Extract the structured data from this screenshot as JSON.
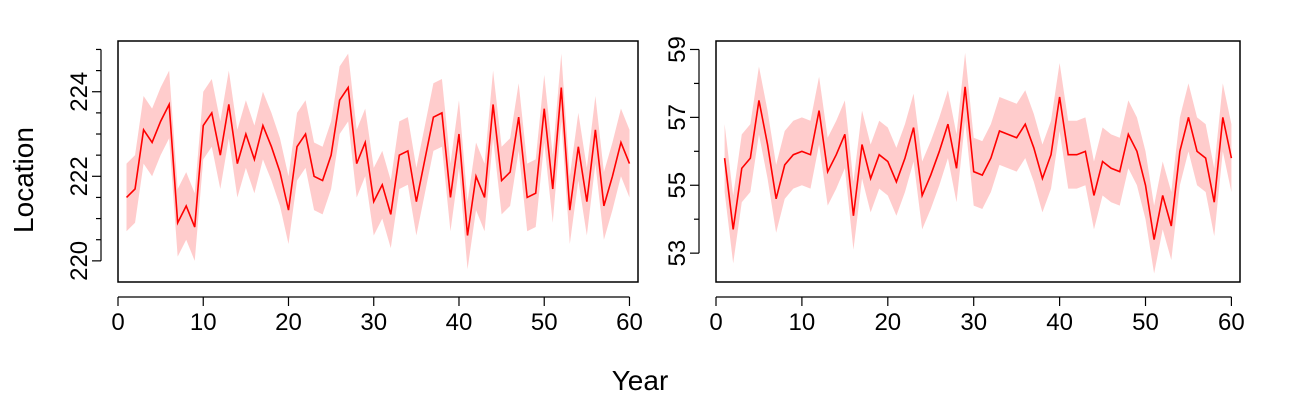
{
  "figure": {
    "xlabel": "Year",
    "ylabel": "Location"
  },
  "colors": {
    "line": "#ff0000",
    "band": "#ffcccc",
    "axis": "#000000"
  },
  "chart_data": [
    {
      "type": "line",
      "title": "",
      "xlim": [
        0,
        61
      ],
      "ylim": [
        219.5,
        225.2
      ],
      "xticks": [
        0,
        10,
        20,
        30,
        40,
        50,
        60
      ],
      "yticks": [
        220,
        222,
        224
      ],
      "yminor_ticks": [
        220,
        220.5,
        221,
        221.5,
        222,
        222.5,
        223,
        223.5,
        224,
        224.5,
        225
      ],
      "x": [
        1,
        2,
        3,
        4,
        5,
        6,
        7,
        8,
        9,
        10,
        11,
        12,
        13,
        14,
        15,
        16,
        17,
        18,
        19,
        20,
        21,
        22,
        23,
        24,
        25,
        26,
        27,
        28,
        29,
        30,
        31,
        32,
        33,
        34,
        35,
        36,
        37,
        38,
        39,
        40,
        41,
        42,
        43,
        44,
        45,
        46,
        47,
        48,
        49,
        50,
        51,
        52,
        53,
        54,
        55,
        56,
        57,
        58,
        59,
        60
      ],
      "series": [
        {
          "values": [
            221.5,
            221.7,
            223.1,
            222.8,
            223.3,
            223.7,
            220.9,
            221.3,
            220.8,
            223.2,
            223.5,
            222.5,
            223.7,
            222.3,
            223.0,
            222.4,
            223.2,
            222.7,
            222.1,
            221.2,
            222.7,
            223.0,
            222.0,
            221.9,
            222.5,
            223.8,
            224.1,
            222.3,
            222.8,
            221.4,
            221.8,
            221.1,
            222.5,
            222.6,
            221.4,
            222.4,
            223.4,
            223.5,
            221.5,
            223.0,
            220.6,
            222.0,
            221.5,
            223.7,
            221.9,
            222.1,
            223.4,
            221.5,
            221.6,
            223.6,
            221.7,
            224.1,
            221.2,
            222.7,
            221.4,
            223.1,
            221.3,
            222.0,
            222.8,
            222.3
          ],
          "lower": [
            220.7,
            220.9,
            222.3,
            222.0,
            222.5,
            222.9,
            220.1,
            220.5,
            220.0,
            222.4,
            222.7,
            221.7,
            222.9,
            221.5,
            222.2,
            221.6,
            222.4,
            221.9,
            221.3,
            220.4,
            221.9,
            222.2,
            221.2,
            221.1,
            221.7,
            223.0,
            223.3,
            221.5,
            222.0,
            220.6,
            221.0,
            220.3,
            221.7,
            221.8,
            220.6,
            221.6,
            222.6,
            222.7,
            220.7,
            222.2,
            219.8,
            221.2,
            220.7,
            222.9,
            221.1,
            221.3,
            222.6,
            220.7,
            220.8,
            222.8,
            220.9,
            223.3,
            220.4,
            221.9,
            220.6,
            222.3,
            220.5,
            221.2,
            222.0,
            221.5
          ],
          "upper": [
            222.3,
            222.5,
            223.9,
            223.6,
            224.1,
            224.5,
            221.7,
            222.1,
            221.6,
            224.0,
            224.3,
            223.3,
            224.5,
            223.1,
            223.8,
            223.2,
            224.0,
            223.5,
            222.9,
            222.0,
            223.5,
            223.8,
            222.8,
            222.7,
            223.3,
            224.6,
            224.9,
            223.1,
            223.6,
            222.2,
            222.6,
            221.9,
            223.3,
            223.4,
            222.2,
            223.2,
            224.2,
            224.3,
            222.3,
            223.8,
            221.4,
            222.8,
            222.3,
            224.5,
            222.7,
            222.9,
            224.2,
            222.3,
            222.4,
            224.4,
            222.5,
            224.9,
            222.0,
            223.5,
            222.2,
            223.9,
            222.1,
            222.8,
            223.6,
            223.1
          ]
        }
      ]
    },
    {
      "type": "line",
      "title": "",
      "xlim": [
        0,
        61
      ],
      "ylim": [
        52.15,
        59.25
      ],
      "xticks": [
        0,
        10,
        20,
        30,
        40,
        50,
        60
      ],
      "yticks": [
        53,
        55,
        57,
        59
      ],
      "yminor_ticks": [
        53,
        54,
        55,
        56,
        57,
        58,
        59
      ],
      "x": [
        1,
        2,
        3,
        4,
        5,
        6,
        7,
        8,
        9,
        10,
        11,
        12,
        13,
        14,
        15,
        16,
        17,
        18,
        19,
        20,
        21,
        22,
        23,
        24,
        25,
        26,
        27,
        28,
        29,
        30,
        31,
        32,
        33,
        34,
        35,
        36,
        37,
        38,
        39,
        40,
        41,
        42,
        43,
        44,
        45,
        46,
        47,
        48,
        49,
        50,
        51,
        52,
        53,
        54,
        55,
        56,
        57,
        58,
        59,
        60
      ],
      "series": [
        {
          "values": [
            55.8,
            53.7,
            55.5,
            55.8,
            57.5,
            56.2,
            54.6,
            55.6,
            55.9,
            56.0,
            55.9,
            57.2,
            55.4,
            55.9,
            56.5,
            54.1,
            56.2,
            55.2,
            55.9,
            55.7,
            55.1,
            55.8,
            56.7,
            54.7,
            55.3,
            56.0,
            56.8,
            55.5,
            57.9,
            55.4,
            55.3,
            55.8,
            56.6,
            56.5,
            56.4,
            56.8,
            56.1,
            55.2,
            55.9,
            57.6,
            55.9,
            55.9,
            56.0,
            54.7,
            55.7,
            55.5,
            55.4,
            56.5,
            56.0,
            55.0,
            53.4,
            54.7,
            53.8,
            56.0,
            57.0,
            56.0,
            55.8,
            54.5,
            57.0,
            55.8
          ],
          "lower": [
            54.8,
            52.7,
            54.5,
            54.8,
            56.5,
            55.2,
            53.6,
            54.6,
            54.9,
            55.0,
            54.9,
            56.2,
            54.4,
            54.9,
            55.5,
            53.1,
            55.2,
            54.2,
            54.9,
            54.7,
            54.1,
            54.8,
            55.7,
            53.7,
            54.3,
            55.0,
            55.8,
            54.5,
            56.9,
            54.4,
            54.3,
            54.8,
            55.6,
            55.5,
            55.4,
            55.8,
            55.1,
            54.2,
            54.9,
            56.6,
            54.9,
            54.9,
            55.0,
            53.7,
            54.7,
            54.5,
            54.4,
            55.5,
            55.0,
            54.0,
            52.4,
            53.7,
            52.8,
            55.0,
            56.0,
            55.0,
            54.8,
            53.5,
            56.0,
            54.8
          ],
          "upper": [
            56.8,
            54.7,
            56.5,
            56.8,
            58.5,
            57.2,
            55.6,
            56.6,
            56.9,
            57.0,
            56.9,
            58.2,
            56.4,
            56.9,
            57.5,
            55.1,
            57.2,
            56.2,
            56.9,
            56.7,
            56.1,
            56.8,
            57.7,
            55.7,
            56.3,
            57.0,
            57.8,
            56.5,
            58.9,
            56.4,
            56.3,
            56.8,
            57.6,
            57.5,
            57.4,
            57.8,
            57.1,
            56.2,
            56.9,
            58.6,
            56.9,
            56.9,
            57.0,
            55.7,
            56.7,
            56.5,
            56.4,
            57.5,
            57.0,
            56.0,
            54.4,
            55.7,
            54.8,
            57.0,
            58.0,
            57.0,
            56.8,
            55.5,
            58.0,
            56.8
          ]
        }
      ]
    }
  ]
}
